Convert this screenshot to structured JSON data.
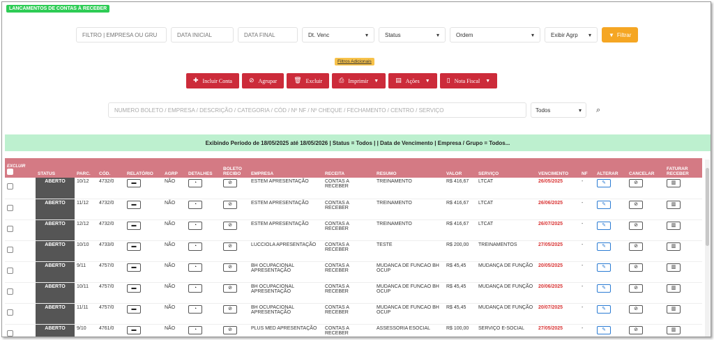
{
  "page": {
    "title": "LANCAMENTOS DE CONTAS À RECEBER"
  },
  "filters": {
    "company_placeholder": "FILTRO | EMPRESA OU GRU",
    "start_date_placeholder": "DATA INICIAL",
    "end_date_placeholder": "DATA FINAL",
    "date_type": "Dt. Venc",
    "status": "Status",
    "order": "Ordem",
    "group": "Exibir Agrp",
    "filter_button": "Filtrar",
    "extra_filters": "Filtros Adicionais"
  },
  "actions": {
    "add": "Incluir Conta",
    "group": "Agrupar",
    "delete": "Excluir",
    "print": "Imprimir",
    "actions": "Ações",
    "invoice": "Nota Fiscal"
  },
  "search": {
    "placeholder": "NUMERO BOLETO / EMPRESA / DESCRIÇÃO / CATEGORIA / CÓD / Nº NF / Nº CHEQUE / FECHAMENTO / CENTRO / SERVIÇO",
    "scope": "Todos"
  },
  "banner": "Exibindo Período de 18/05/2025 até 18/05/2026 | Status = Todos | | Data de Vencimento | Empresa / Grupo = Todos...",
  "table": {
    "headers": {
      "excluir": "EXCLUIR",
      "status": "STATUS",
      "parc": "PARC.",
      "cod": "CÓD.",
      "relatorio": "RELATÓRIO",
      "agrp": "AGRP",
      "detalhes": "DETALHES",
      "boleto": "BOLETO RECIBO",
      "empresa": "EMPRESA",
      "receita": "RECEITA",
      "resumo": "RESUMO",
      "valor": "VALOR",
      "servico": "SERVIÇO",
      "vencimento": "VENCIMENTO",
      "nf": "NF",
      "alterar": "ALTERAR",
      "cancelar": "CANCELAR",
      "faturar": "FATURAR RECEBER"
    },
    "rows": [
      {
        "status": "ABERTO",
        "parc": "10/12",
        "cod": "4732/0",
        "agrp": "NÃO",
        "empresa": "ESTEM APRESENTAÇÃO",
        "receita": "CONTAS A RECEBER",
        "resumo": "TREINAMENTO",
        "valor": "R$ 416,67",
        "servico": "LTCAT",
        "vencimento": "26/05/2025",
        "nf": "-"
      },
      {
        "status": "ABERTO",
        "parc": "11/12",
        "cod": "4732/0",
        "agrp": "NÃO",
        "empresa": "ESTEM APRESENTAÇÃO",
        "receita": "CONTAS A RECEBER",
        "resumo": "TREINAMENTO",
        "valor": "R$ 416,67",
        "servico": "LTCAT",
        "vencimento": "26/06/2025",
        "nf": "-"
      },
      {
        "status": "ABERTO",
        "parc": "12/12",
        "cod": "4732/0",
        "agrp": "NÃO",
        "empresa": "ESTEM APRESENTAÇÃO",
        "receita": "CONTAS A RECEBER",
        "resumo": "TREINAMENTO",
        "valor": "R$ 416,67",
        "servico": "LTCAT",
        "vencimento": "26/07/2025",
        "nf": "-"
      },
      {
        "status": "ABERTO",
        "parc": "10/10",
        "cod": "4733/0",
        "agrp": "NÃO",
        "empresa": "LUCCIOLA APRESENTAÇÃO",
        "receita": "CONTAS A RECEBER",
        "resumo": "TESTE",
        "valor": "R$ 200,00",
        "servico": "TREINAMENTOS",
        "vencimento": "27/05/2025",
        "nf": "-"
      },
      {
        "status": "ABERTO",
        "parc": "9/11",
        "cod": "4757/0",
        "agrp": "NÃO",
        "empresa": "BH OCUPACIONAL APRESENTAÇÃO",
        "receita": "CONTAS A RECEBER",
        "resumo": "MUDANCA DE FUNCAO BH OCUP",
        "valor": "R$ 45,45",
        "servico": "MUDANÇA DE FUNÇÃO",
        "vencimento": "20/05/2025",
        "nf": "-"
      },
      {
        "status": "ABERTO",
        "parc": "10/11",
        "cod": "4757/0",
        "agrp": "NÃO",
        "empresa": "BH OCUPACIONAL APRESENTAÇÃO",
        "receita": "CONTAS A RECEBER",
        "resumo": "MUDANCA DE FUNCAO BH OCUP",
        "valor": "R$ 45,45",
        "servico": "MUDANÇA DE FUNÇÃO",
        "vencimento": "20/06/2025",
        "nf": "-"
      },
      {
        "status": "ABERTO",
        "parc": "11/11",
        "cod": "4757/0",
        "agrp": "NÃO",
        "empresa": "BH OCUPACIONAL APRESENTAÇÃO",
        "receita": "CONTAS A RECEBER",
        "resumo": "MUDANCA DE FUNCAO BH OCUP",
        "valor": "R$ 45,45",
        "servico": "MUDANÇA DE FUNÇÃO",
        "vencimento": "20/07/2025",
        "nf": "-"
      },
      {
        "status": "ABERTO",
        "parc": "9/10",
        "cod": "4761/0",
        "agrp": "NÃO",
        "empresa": "PLUS MED APRESENTAÇÃO",
        "receita": "CONTAS A RECEBER",
        "resumo": "ASSESSORIA ESOCIAL",
        "valor": "R$ 100,00",
        "servico": "SERVIÇO E-SOCIAL",
        "vencimento": "27/05/2025",
        "nf": "-"
      }
    ]
  },
  "colors": {
    "primary": "#cc2b3a",
    "badge": "#2ecc55",
    "banner": "#bdf0cf",
    "header": "#d47a84",
    "filter": "#f5a623"
  }
}
